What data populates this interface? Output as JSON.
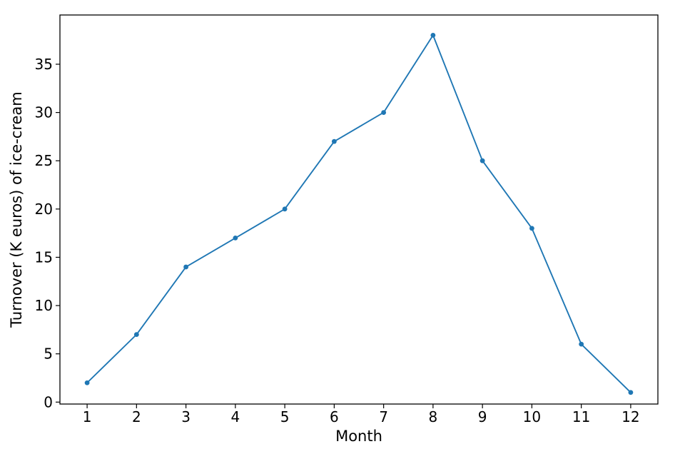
{
  "figure": {
    "background": "#ffffff"
  },
  "chart_data": {
    "type": "line",
    "title": "",
    "xlabel": "Month",
    "ylabel": "Turnover (K euros) of ice-cream",
    "x": [
      1,
      2,
      3,
      4,
      5,
      6,
      7,
      8,
      9,
      10,
      11,
      12
    ],
    "values": [
      2,
      7,
      14,
      17,
      20,
      27,
      30,
      38,
      25,
      18,
      6,
      1
    ],
    "xticks": [
      1,
      2,
      3,
      4,
      5,
      6,
      7,
      8,
      9,
      10,
      11,
      12
    ],
    "yticks": [
      0,
      5,
      10,
      15,
      20,
      25,
      30,
      35
    ],
    "xlim": [
      0.45,
      12.55
    ],
    "ylim": [
      -0.2,
      40.1
    ],
    "grid": false,
    "legend": "none",
    "line_color": "#1f77b4",
    "marker": "circle",
    "marker_color": "#1f77b4",
    "axis_color": "#000000"
  }
}
